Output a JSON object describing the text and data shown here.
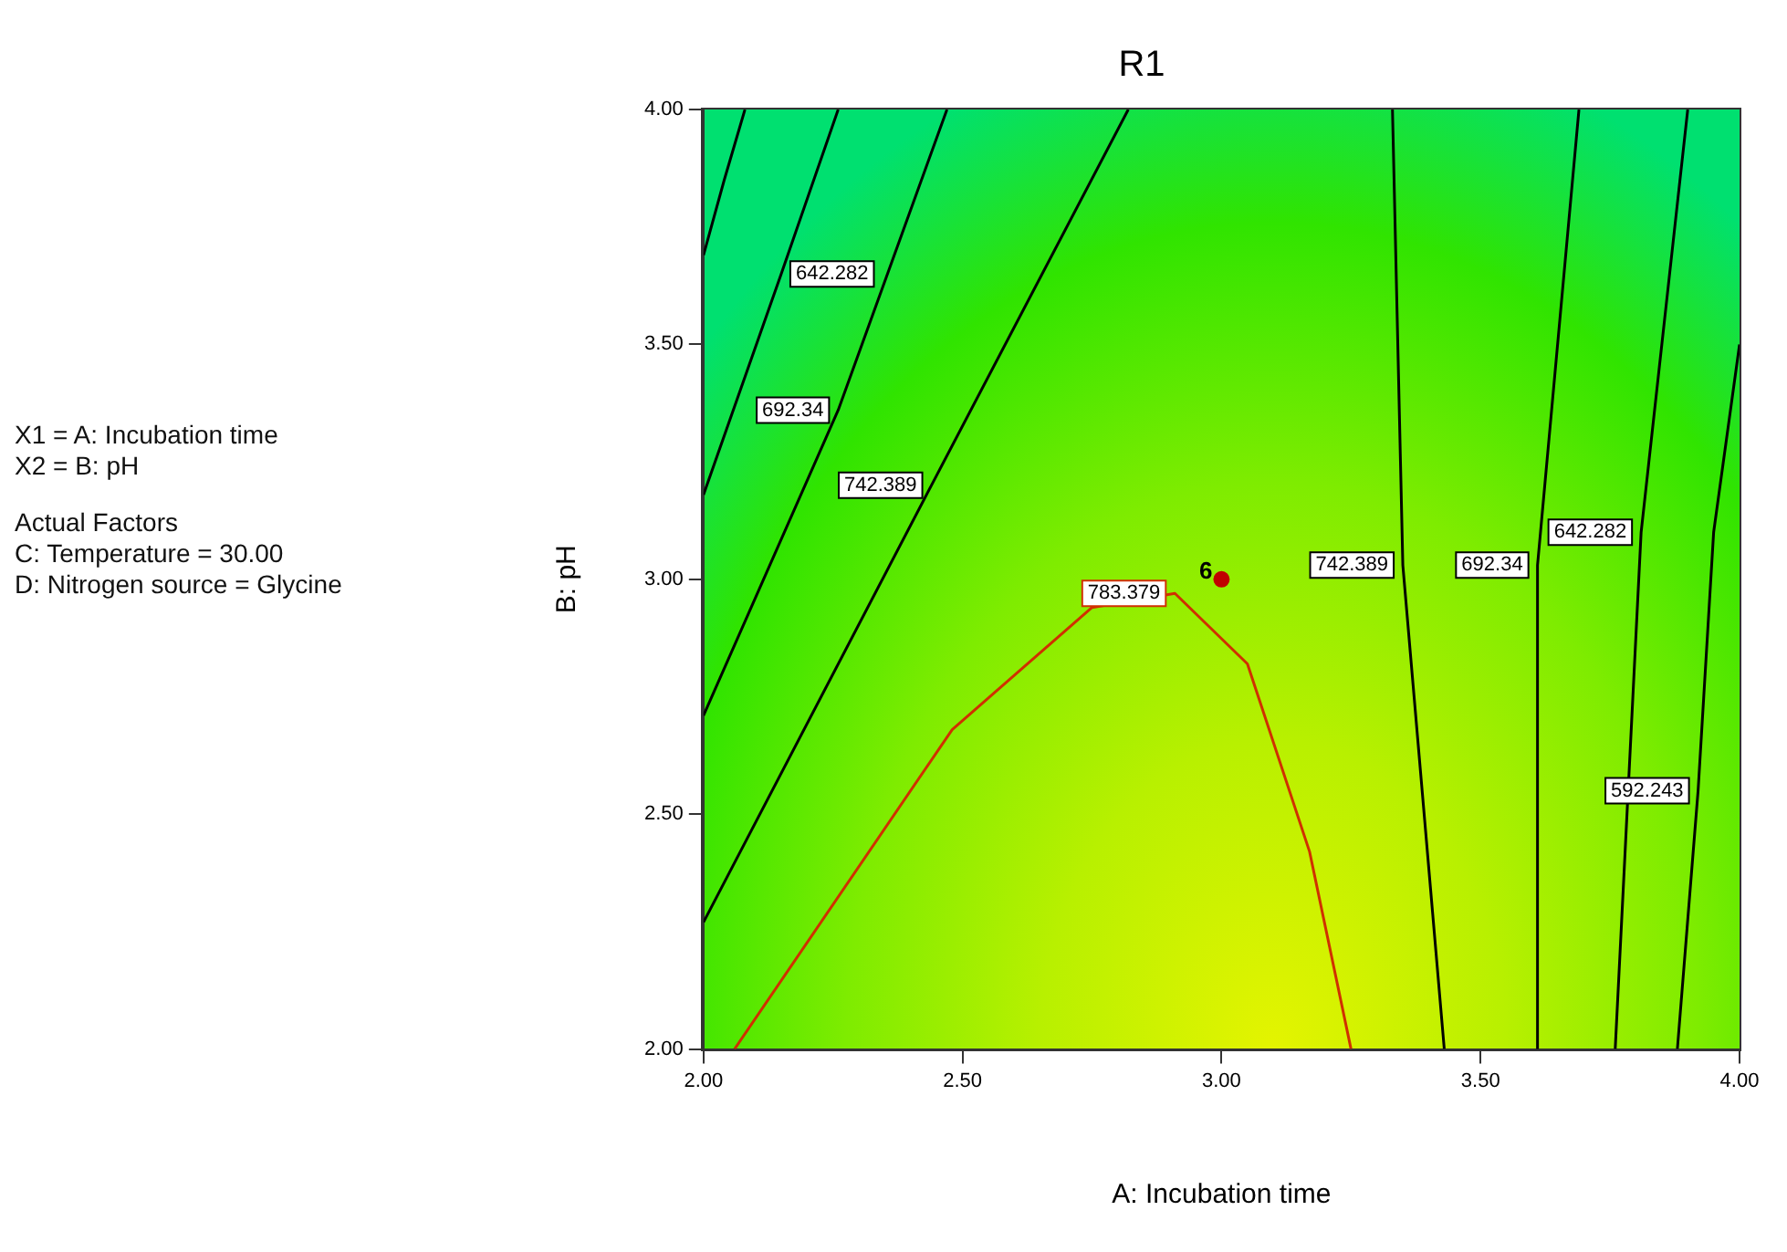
{
  "chart_data": {
    "type": "line",
    "title": "R1",
    "xlabel": "A: Incubation time",
    "ylabel": "B: pH",
    "xlim": [
      2,
      4
    ],
    "ylim": [
      2,
      4
    ],
    "xticks": [
      {
        "value": 2,
        "label": "2.00"
      },
      {
        "value": 2.5,
        "label": "2.50"
      },
      {
        "value": 3,
        "label": "3.00"
      },
      {
        "value": 3.5,
        "label": "3.50"
      },
      {
        "value": 4,
        "label": "4.00"
      }
    ],
    "yticks": [
      {
        "value": 2,
        "label": "2.00"
      },
      {
        "value": 2.5,
        "label": "2.50"
      },
      {
        "value": 3,
        "label": "3.00"
      },
      {
        "value": 3.5,
        "label": "3.50"
      },
      {
        "value": 4,
        "label": "4.00"
      }
    ],
    "grid": false,
    "legend": false,
    "marker": "none",
    "line_style": "solid",
    "series": [
      {
        "color": "#000000",
        "x": [
          2.08,
          2.04,
          2.0
        ],
        "values": [
          4.0,
          3.85,
          3.69
        ]
      },
      {
        "name": "642.282",
        "color": "#000000",
        "x": [
          2.26,
          2.15,
          2.0
        ],
        "values": [
          4.0,
          3.65,
          3.18
        ]
      },
      {
        "name": "692.34",
        "color": "#000000",
        "x": [
          2.47,
          2.26,
          2.0
        ],
        "values": [
          4.0,
          3.36,
          2.71
        ]
      },
      {
        "name": "742.389",
        "color": "#000000",
        "x": [
          2.82,
          2.44,
          2.0
        ],
        "values": [
          4.0,
          3.2,
          2.27
        ]
      },
      {
        "name": "783.379",
        "color": "#d03000",
        "x": [
          2.06,
          2.48,
          2.75,
          2.91,
          3.05,
          3.17,
          3.25
        ],
        "values": [
          2.0,
          2.68,
          2.94,
          2.97,
          2.82,
          2.42,
          2.0
        ]
      },
      {
        "name": "742.389",
        "color": "#000000",
        "x": [
          3.33,
          3.35,
          3.43
        ],
        "values": [
          4.0,
          3.03,
          2.0
        ]
      },
      {
        "name": "692.34",
        "color": "#000000",
        "x": [
          3.69,
          3.61,
          3.61
        ],
        "values": [
          4.0,
          3.03,
          2.0
        ]
      },
      {
        "name": "642.282",
        "color": "#000000",
        "x": [
          3.9,
          3.81,
          3.76
        ],
        "values": [
          4.0,
          3.1,
          2.0
        ]
      },
      {
        "name": "592.243",
        "color": "#000000",
        "x": [
          4.0,
          3.95,
          3.92,
          3.88
        ],
        "values": [
          3.5,
          3.1,
          2.55,
          2.0
        ]
      },
      {
        "type": "scatter",
        "name": "6",
        "color": "#c00000",
        "marker": "circle",
        "x": [
          3.0
        ],
        "values": [
          3.0
        ]
      }
    ],
    "annotations": [
      "X1 = A: Incubation time",
      "X2 = B: pH",
      "Actual Factors",
      "C: Temperature = 30.00",
      "D: Nitrogen source = Glycine"
    ]
  }
}
